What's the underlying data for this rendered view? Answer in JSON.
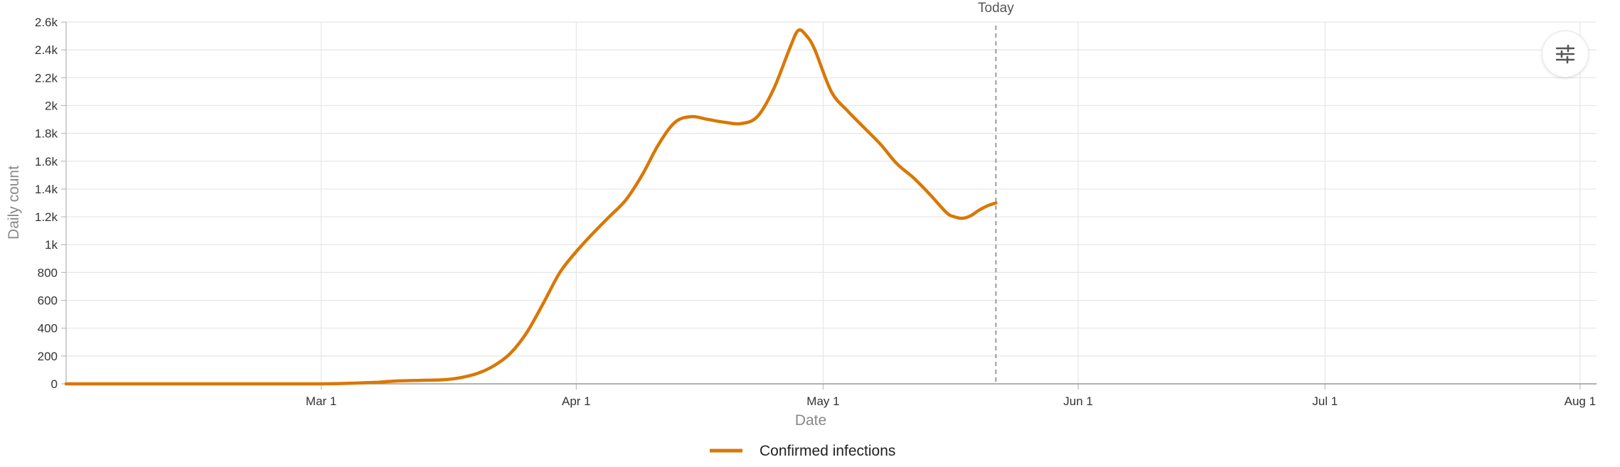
{
  "chart_data": {
    "type": "line",
    "xlabel": "Date",
    "ylabel": "Daily count",
    "ylim": [
      0,
      2600
    ],
    "xlim": [
      "2020-01-30",
      "2020-08-03"
    ],
    "y_ticks": [
      0,
      200,
      400,
      600,
      800,
      1000,
      1200,
      1400,
      1600,
      1800,
      2000,
      2200,
      2400,
      2600
    ],
    "y_tick_labels": [
      "0",
      "200",
      "400",
      "600",
      "800",
      "1k",
      "1.2k",
      "1.4k",
      "1.6k",
      "1.8k",
      "2k",
      "2.2k",
      "2.4k",
      "2.6k"
    ],
    "x_ticks": [
      "2020-03-01",
      "2020-04-01",
      "2020-05-01",
      "2020-06-01",
      "2020-07-01",
      "2020-08-01"
    ],
    "x_tick_labels": [
      "Mar 1",
      "Apr 1",
      "May 1",
      "Jun 1",
      "Jul 1",
      "Aug 1"
    ],
    "grid": true,
    "legend_position": "bottom-center",
    "annotations": [
      {
        "type": "vertical-line",
        "x": "2020-05-22",
        "label": "Today",
        "style": "dashed"
      }
    ],
    "series": [
      {
        "name": "Confirmed infections",
        "color": "#D97706",
        "points": [
          [
            "2020-01-30",
            0
          ],
          [
            "2020-02-10",
            0
          ],
          [
            "2020-02-20",
            0
          ],
          [
            "2020-03-01",
            0
          ],
          [
            "2020-03-05",
            5
          ],
          [
            "2020-03-08",
            12
          ],
          [
            "2020-03-10",
            20
          ],
          [
            "2020-03-13",
            25
          ],
          [
            "2020-03-16",
            30
          ],
          [
            "2020-03-18",
            45
          ],
          [
            "2020-03-20",
            75
          ],
          [
            "2020-03-22",
            130
          ],
          [
            "2020-03-24",
            220
          ],
          [
            "2020-03-26",
            370
          ],
          [
            "2020-03-28",
            580
          ],
          [
            "2020-03-30",
            800
          ],
          [
            "2020-04-01",
            950
          ],
          [
            "2020-04-03",
            1080
          ],
          [
            "2020-04-05",
            1200
          ],
          [
            "2020-04-07",
            1320
          ],
          [
            "2020-04-09",
            1500
          ],
          [
            "2020-04-11",
            1720
          ],
          [
            "2020-04-13",
            1880
          ],
          [
            "2020-04-15",
            1920
          ],
          [
            "2020-04-17",
            1900
          ],
          [
            "2020-04-19",
            1880
          ],
          [
            "2020-04-21",
            1870
          ],
          [
            "2020-04-23",
            1920
          ],
          [
            "2020-04-25",
            2120
          ],
          [
            "2020-04-27",
            2420
          ],
          [
            "2020-04-28",
            2540
          ],
          [
            "2020-04-29",
            2500
          ],
          [
            "2020-04-30",
            2400
          ],
          [
            "2020-05-02",
            2100
          ],
          [
            "2020-05-04",
            1960
          ],
          [
            "2020-05-06",
            1840
          ],
          [
            "2020-05-08",
            1720
          ],
          [
            "2020-05-10",
            1580
          ],
          [
            "2020-05-12",
            1480
          ],
          [
            "2020-05-14",
            1360
          ],
          [
            "2020-05-16",
            1230
          ],
          [
            "2020-05-17",
            1200
          ],
          [
            "2020-05-18",
            1190
          ],
          [
            "2020-05-19",
            1210
          ],
          [
            "2020-05-20",
            1250
          ],
          [
            "2020-05-21",
            1280
          ],
          [
            "2020-05-22",
            1300
          ]
        ]
      }
    ]
  },
  "controls": {
    "settings_icon": "sliders-icon"
  }
}
